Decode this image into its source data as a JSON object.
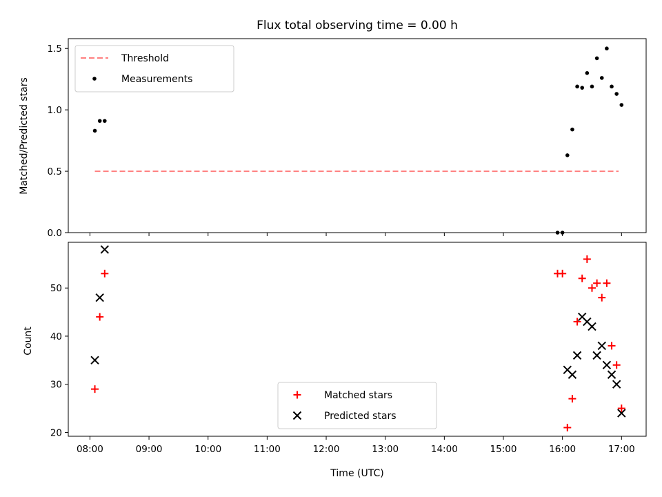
{
  "chart_data": [
    {
      "type": "scatter",
      "title": "Flux total observing time = 0.00 h",
      "xlabel": "",
      "ylabel": "Matched/Predicted stars",
      "xlim": [
        "07:38",
        "17:25"
      ],
      "ylim": [
        0,
        1.58
      ],
      "yticks": [
        "0.0",
        "0.5",
        "1.0",
        "1.5"
      ],
      "ytick_values": [
        0,
        0.5,
        1.0,
        1.5
      ],
      "grid": false,
      "legend": "top-left",
      "series": [
        {
          "name": "Threshold",
          "kind": "dashed-line",
          "color": "#ff7f7f",
          "x": [
            "08:05",
            "16:57"
          ],
          "y": [
            0.5,
            0.5
          ]
        },
        {
          "name": "Measurements",
          "kind": "dot",
          "color": "#000000",
          "x": [
            "08:05",
            "08:10",
            "08:15",
            "15:55",
            "16:00",
            "16:05",
            "16:10",
            "16:15",
            "16:20",
            "16:25",
            "16:30",
            "16:35",
            "16:40",
            "16:45",
            "16:50",
            "16:55",
            "17:00"
          ],
          "y": [
            0.83,
            0.91,
            0.91,
            0.0,
            0.0,
            0.63,
            0.84,
            1.19,
            1.18,
            1.3,
            1.19,
            1.42,
            1.26,
            1.5,
            1.19,
            1.13,
            1.04
          ]
        }
      ]
    },
    {
      "type": "scatter",
      "title": "",
      "xlabel": "Time (UTC)",
      "ylabel": "Count",
      "xlim": [
        "07:38",
        "17:25"
      ],
      "ylim": [
        19.2,
        59.5
      ],
      "yticks": [
        "20",
        "30",
        "40",
        "50"
      ],
      "ytick_values": [
        20,
        30,
        40,
        50
      ],
      "xticks": [
        "08:00",
        "09:00",
        "10:00",
        "11:00",
        "12:00",
        "13:00",
        "14:00",
        "15:00",
        "16:00",
        "17:00"
      ],
      "grid": false,
      "legend": "bottom-center",
      "series": [
        {
          "name": "Matched stars",
          "marker": "plus",
          "color": "#ff0000",
          "x": [
            "08:05",
            "08:10",
            "08:15",
            "15:55",
            "16:00",
            "16:05",
            "16:10",
            "16:15",
            "16:20",
            "16:25",
            "16:30",
            "16:35",
            "16:40",
            "16:45",
            "16:50",
            "16:55",
            "17:00"
          ],
          "y": [
            29,
            44,
            53,
            53,
            53,
            21,
            27,
            43,
            52,
            56,
            50,
            51,
            48,
            51,
            38,
            34,
            25
          ]
        },
        {
          "name": "Predicted stars",
          "marker": "x",
          "color": "#000000",
          "x": [
            "08:05",
            "08:10",
            "08:15",
            "16:05",
            "16:10",
            "16:15",
            "16:20",
            "16:25",
            "16:30",
            "16:35",
            "16:40",
            "16:45",
            "16:50",
            "16:55",
            "17:00"
          ],
          "y": [
            35,
            48,
            58,
            33,
            32,
            36,
            44,
            43,
            42,
            36,
            38,
            34,
            32,
            30,
            24
          ]
        }
      ]
    }
  ]
}
